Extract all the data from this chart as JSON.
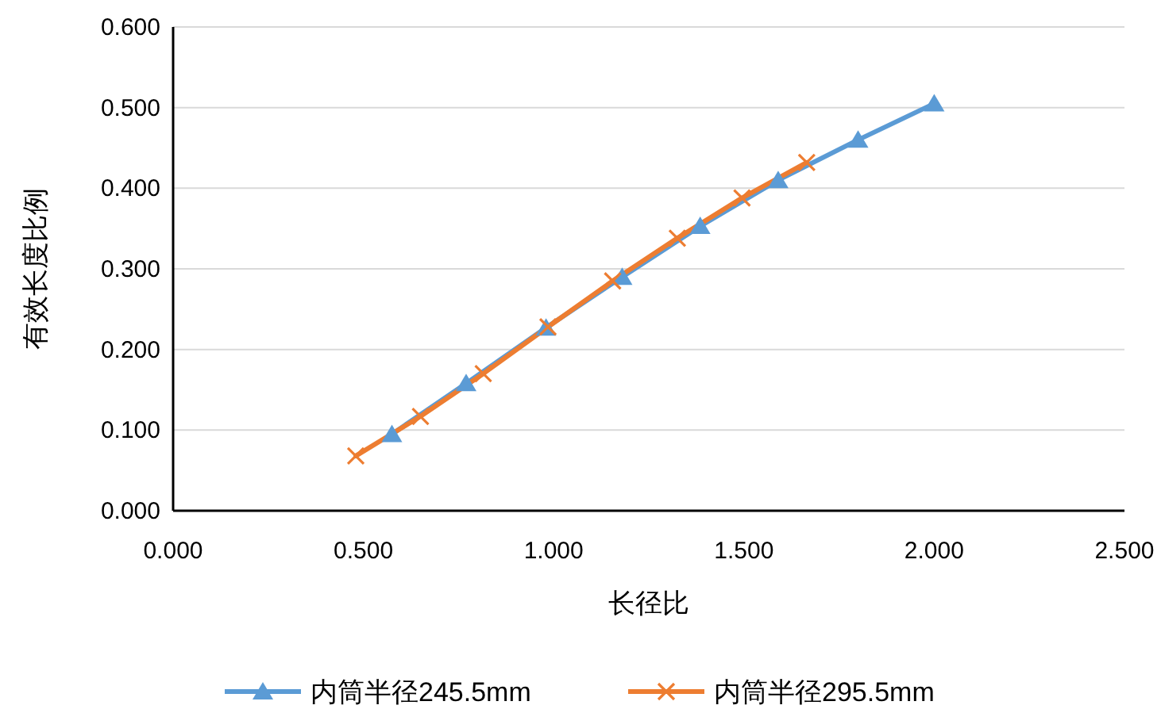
{
  "chart_data": {
    "type": "line",
    "xlabel": "长径比",
    "ylabel": "有效长度比例",
    "xlim": [
      0,
      2.5
    ],
    "ylim": [
      0,
      0.6
    ],
    "xticks": [
      {
        "value": 0,
        "label": "0.000"
      },
      {
        "value": 0.5,
        "label": "0.500"
      },
      {
        "value": 1,
        "label": "1.000"
      },
      {
        "value": 1.5,
        "label": "1.500"
      },
      {
        "value": 2,
        "label": "2.000"
      },
      {
        "value": 2.5,
        "label": "2.500"
      }
    ],
    "yticks": [
      {
        "value": 0,
        "label": "0.000"
      },
      {
        "value": 0.1,
        "label": "0.100"
      },
      {
        "value": 0.2,
        "label": "0.200"
      },
      {
        "value": 0.3,
        "label": "0.300"
      },
      {
        "value": 0.4,
        "label": "0.400"
      },
      {
        "value": 0.5,
        "label": "0.500"
      },
      {
        "value": 0.6,
        "label": "0.600"
      }
    ],
    "grid": "y",
    "legend": "bottom",
    "line_style": "solid",
    "series": [
      {
        "name": "内筒半径245.5mm",
        "color": "#5b9bd5",
        "marker": "triangle",
        "x": [
          0.575,
          0.77,
          0.98,
          1.18,
          1.385,
          1.59,
          1.8,
          2.0
        ],
        "values": [
          0.095,
          0.158,
          0.227,
          0.29,
          0.353,
          0.41,
          0.46,
          0.505
        ]
      },
      {
        "name": "内筒半径295.5mm",
        "color": "#ed7d31",
        "marker": "cross",
        "x": [
          0.48,
          0.65,
          0.815,
          0.985,
          1.155,
          1.325,
          1.495,
          1.665
        ],
        "values": [
          0.068,
          0.117,
          0.17,
          0.228,
          0.285,
          0.338,
          0.388,
          0.432
        ]
      }
    ]
  }
}
